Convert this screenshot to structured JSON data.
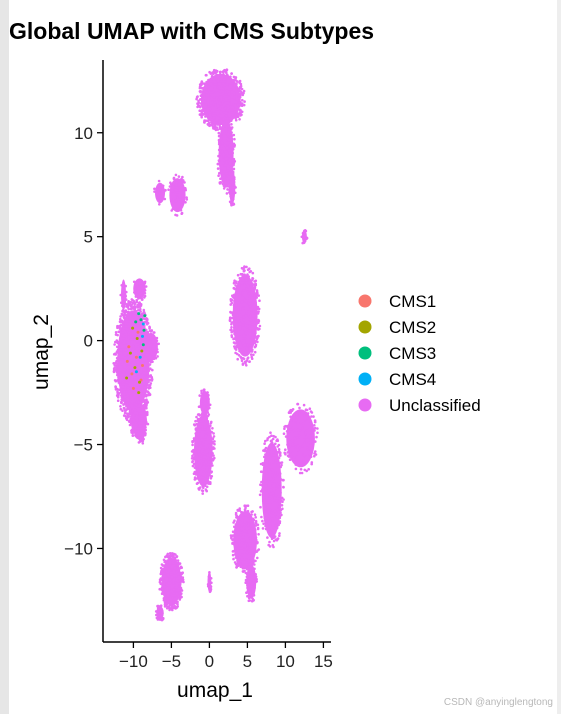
{
  "chart_data": {
    "type": "scatter",
    "title": "Global UMAP with CMS Subtypes",
    "xlabel": "umap_1",
    "ylabel": "umap_2",
    "xlim": [
      -14,
      16
    ],
    "ylim": [
      -14.5,
      13.5
    ],
    "x_ticks": [
      -10,
      -5,
      0,
      5,
      10,
      15
    ],
    "x_tick_labels": [
      "−10",
      "−5",
      "0",
      "5",
      "10",
      "15"
    ],
    "y_ticks": [
      10,
      5,
      0,
      -5,
      -10
    ],
    "y_tick_labels": [
      "10",
      "5",
      "0",
      "−5",
      "−10"
    ],
    "grid": false,
    "legend_position": "right",
    "series": [
      {
        "name": "CMS1",
        "color": "#F8766D",
        "points": [
          [
            -10.8,
            -1.0
          ],
          [
            -10.2,
            -1.6
          ],
          [
            -9.6,
            -0.8
          ],
          [
            -9.0,
            -1.9
          ],
          [
            -10.6,
            -0.3
          ],
          [
            -9.4,
            0.4
          ],
          [
            -8.8,
            -1.2
          ],
          [
            -10.0,
            -2.3
          ]
        ]
      },
      {
        "name": "CMS2",
        "color": "#A3A500",
        "points": [
          [
            -10.4,
            -0.6
          ],
          [
            -9.8,
            -1.3
          ],
          [
            -9.2,
            -2.0
          ],
          [
            -10.9,
            -1.8
          ],
          [
            -9.5,
            0.1
          ],
          [
            -8.9,
            -0.5
          ],
          [
            -10.1,
            0.6
          ],
          [
            -9.3,
            -2.5
          ]
        ]
      },
      {
        "name": "CMS3",
        "color": "#00BF7D",
        "points": [
          [
            -9.0,
            1.0
          ],
          [
            -8.6,
            0.5
          ],
          [
            -9.3,
            1.3
          ],
          [
            -8.7,
            -0.2
          ],
          [
            -9.7,
            0.9
          ],
          [
            -8.5,
            1.2
          ]
        ]
      },
      {
        "name": "CMS4",
        "color": "#00B0F6",
        "points": [
          [
            -8.8,
            0.2
          ],
          [
            -9.1,
            -0.8
          ],
          [
            -9.6,
            -1.5
          ],
          [
            -8.7,
            0.8
          ]
        ]
      },
      {
        "name": "Unclassified",
        "color": "#E76BF3",
        "clusters": [
          {
            "cx": 1.5,
            "cy": 11.6,
            "rx": 3.2,
            "ry": 1.5,
            "n": 500
          },
          {
            "cx": 2.2,
            "cy": 9.0,
            "rx": 1.2,
            "ry": 2.0,
            "n": 200
          },
          {
            "cx": 3.0,
            "cy": 7.4,
            "rx": 0.5,
            "ry": 1.0,
            "n": 50
          },
          {
            "cx": -4.2,
            "cy": 7.0,
            "rx": 1.3,
            "ry": 1.0,
            "n": 70
          },
          {
            "cx": -6.5,
            "cy": 7.1,
            "rx": 0.8,
            "ry": 0.6,
            "n": 20
          },
          {
            "cx": 12.5,
            "cy": 5.0,
            "rx": 0.4,
            "ry": 0.4,
            "n": 15
          },
          {
            "cx": 4.7,
            "cy": 1.2,
            "rx": 2.0,
            "ry": 2.4,
            "n": 360
          },
          {
            "cx": -11.3,
            "cy": 2.2,
            "rx": 0.4,
            "ry": 0.9,
            "n": 25
          },
          {
            "cx": -9.2,
            "cy": 2.5,
            "rx": 1.0,
            "ry": 0.6,
            "n": 35
          },
          {
            "cx": -10.0,
            "cy": -1.0,
            "rx": 2.6,
            "ry": 3.0,
            "n": 900
          },
          {
            "cx": -7.6,
            "cy": -0.3,
            "rx": 1.0,
            "ry": 0.8,
            "n": 60
          },
          {
            "cx": -9.3,
            "cy": -3.8,
            "rx": 1.3,
            "ry": 1.0,
            "n": 130
          },
          {
            "cx": -9.0,
            "cy": -4.4,
            "rx": 0.6,
            "ry": 0.6,
            "n": 30
          },
          {
            "cx": -0.8,
            "cy": -5.3,
            "rx": 1.5,
            "ry": 2.1,
            "n": 260
          },
          {
            "cx": -0.6,
            "cy": -3.0,
            "rx": 0.8,
            "ry": 0.7,
            "n": 60
          },
          {
            "cx": 12.0,
            "cy": -4.7,
            "rx": 2.3,
            "ry": 1.7,
            "n": 170
          },
          {
            "cx": 8.2,
            "cy": -7.2,
            "rx": 1.6,
            "ry": 2.8,
            "n": 220
          },
          {
            "cx": 4.7,
            "cy": -9.6,
            "rx": 1.9,
            "ry": 1.7,
            "n": 250
          },
          {
            "cx": 5.5,
            "cy": -11.6,
            "rx": 0.8,
            "ry": 1.0,
            "n": 90
          },
          {
            "cx": -5.0,
            "cy": -11.6,
            "rx": 1.6,
            "ry": 1.4,
            "n": 380
          },
          {
            "cx": -6.5,
            "cy": -13.1,
            "rx": 0.6,
            "ry": 0.4,
            "n": 30
          },
          {
            "cx": 0.0,
            "cy": -11.6,
            "rx": 0.3,
            "ry": 0.6,
            "n": 15
          }
        ]
      }
    ]
  },
  "watermark": "CSDN @anyinglengtong"
}
